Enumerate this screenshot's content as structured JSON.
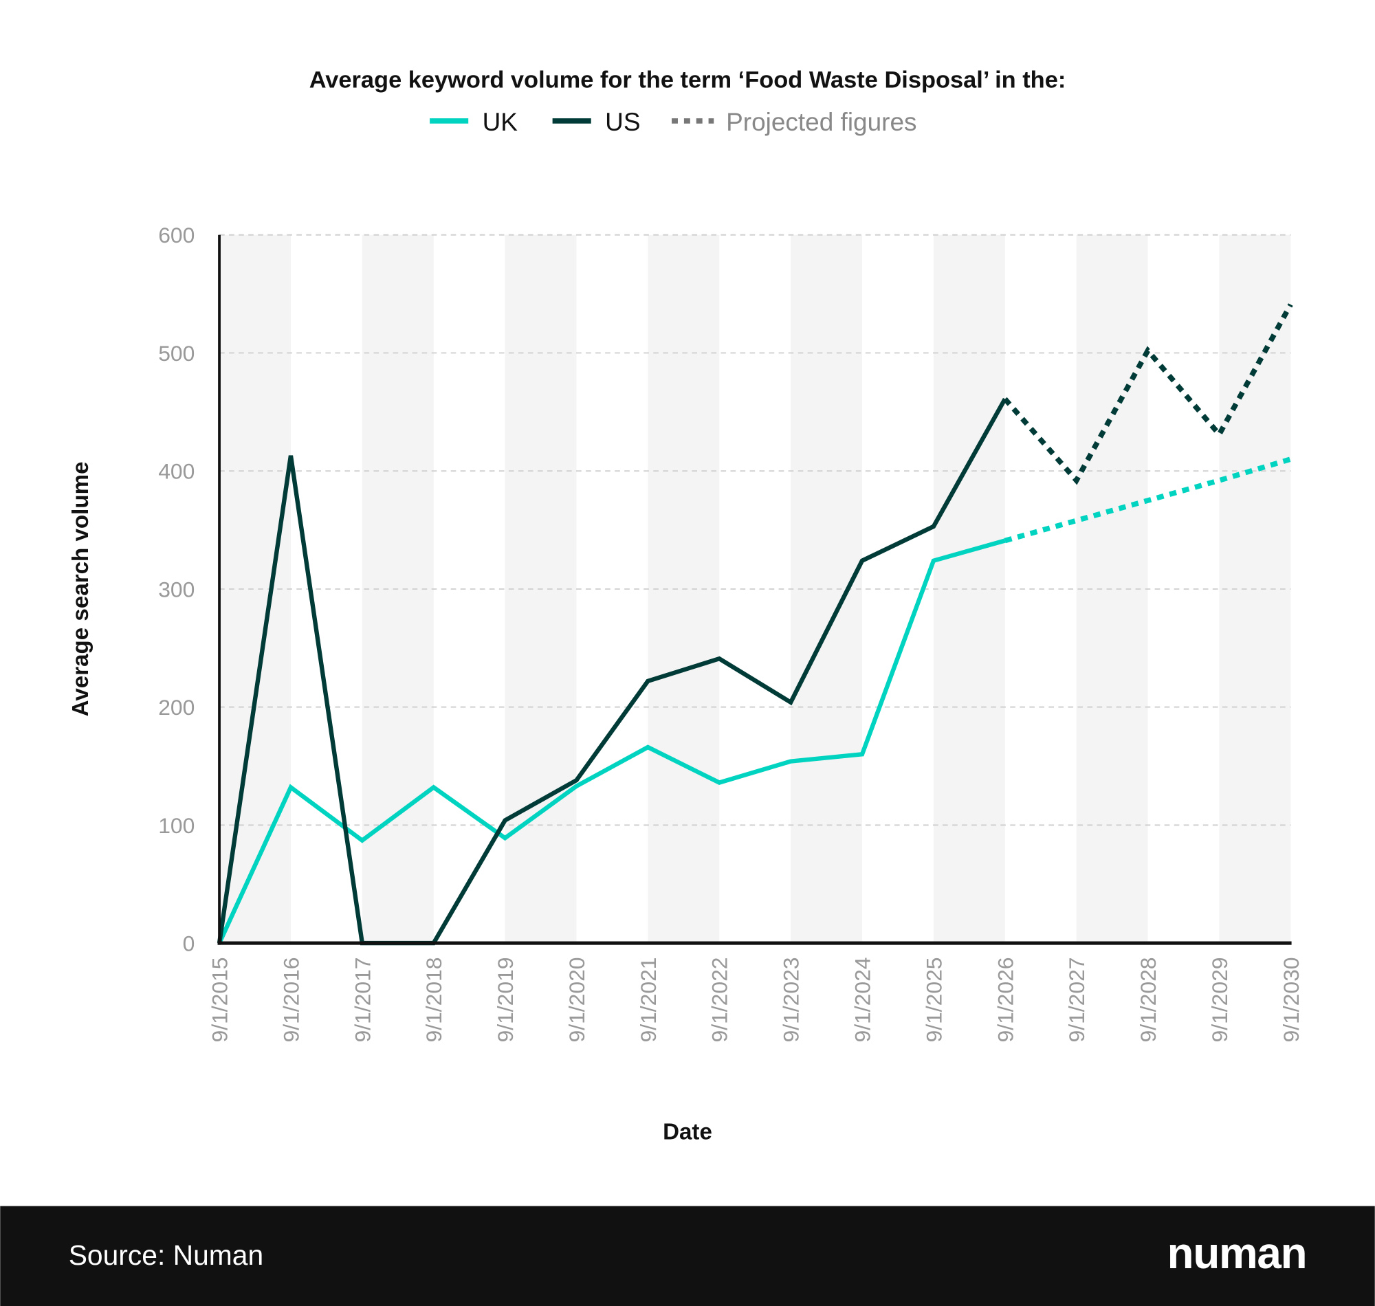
{
  "chart_data": {
    "type": "line",
    "title": "Average keyword volume for the term ‘Food Waste Disposal’ in the:",
    "xlabel": "Date",
    "ylabel": "Average search volume",
    "ylim": [
      0,
      600
    ],
    "yticks": [
      "0",
      "100",
      "200",
      "300",
      "400",
      "500",
      "600"
    ],
    "ytick_values": [
      0,
      100,
      200,
      300,
      400,
      500,
      600
    ],
    "categories": [
      "9/1/2015",
      "9/1/2016",
      "9/1/2017",
      "9/1/2018",
      "9/1/2019",
      "9/1/2020",
      "9/1/2021",
      "9/1/2022",
      "9/1/2023",
      "9/1/2024",
      "9/1/2025",
      "9/1/2026",
      "9/1/2027",
      "9/1/2028",
      "9/1/2029",
      "9/1/2030"
    ],
    "projection_start_index": 11,
    "grid": "horizontal dashed",
    "legend_position": "top-center",
    "legend": [
      {
        "label": "UK",
        "style": "solid",
        "color": "#00d3c0"
      },
      {
        "label": "US",
        "style": "solid",
        "color": "#003b38"
      },
      {
        "label": "Projected figures",
        "style": "dotted",
        "color": "#777777"
      }
    ],
    "series": [
      {
        "name": "UK",
        "color": "#00d3c0",
        "values": [
          0,
          132,
          87,
          132,
          89,
          133,
          166,
          136,
          154,
          160,
          324,
          341,
          358,
          375,
          392,
          410
        ]
      },
      {
        "name": "US",
        "color": "#003b38",
        "values": [
          0,
          413,
          0,
          0,
          104,
          138,
          222,
          241,
          204,
          324,
          353,
          461,
          392,
          502,
          431,
          541
        ]
      }
    ]
  },
  "footer": {
    "source": "Source: Numan",
    "logo": "numan",
    "background": "#111111"
  }
}
